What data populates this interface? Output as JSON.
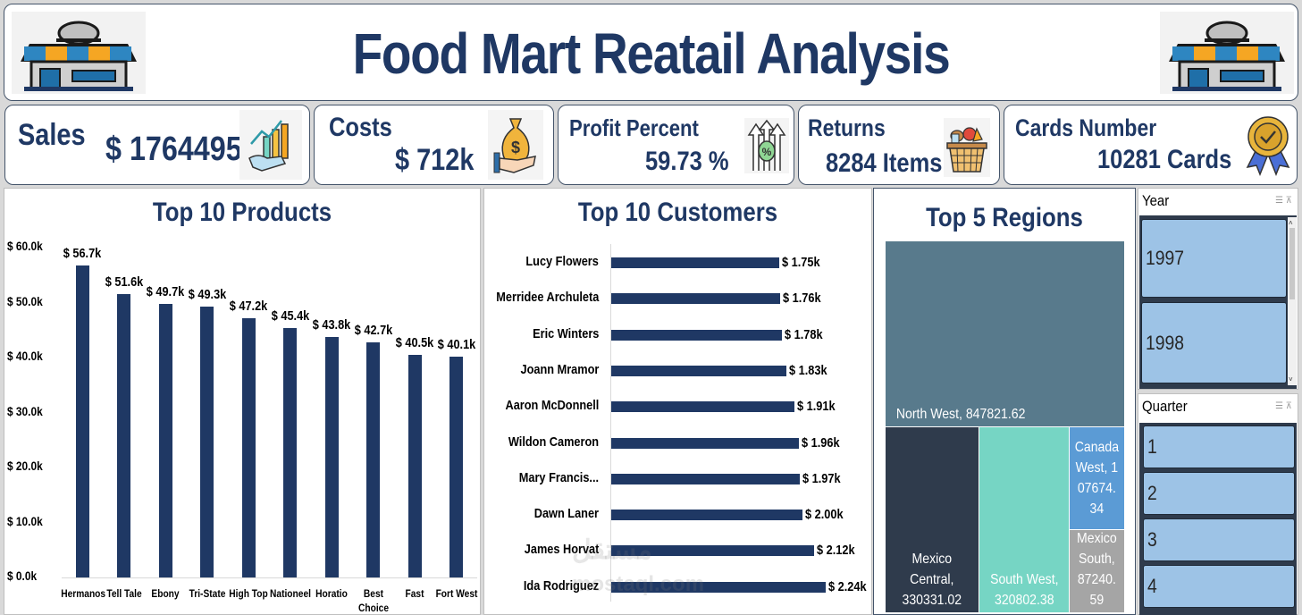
{
  "header": {
    "title": "Food Mart Reatail Analysis",
    "left_icon": "store-icon",
    "right_icon": "store-icon"
  },
  "kpis": [
    {
      "label": "Sales",
      "value": "$ 1764495",
      "icon": "sales-growth-icon"
    },
    {
      "label": "Costs",
      "value": "$ 712k",
      "icon": "money-bag-icon"
    },
    {
      "label": "Profit Percent",
      "value": "59.73 %",
      "icon": "percent-arrows-icon"
    },
    {
      "label": "Returns",
      "value": "8284 Items",
      "icon": "basket-icon"
    },
    {
      "label": "Cards Number",
      "value": "10281 Cards",
      "icon": "medal-icon"
    }
  ],
  "products_panel": {
    "title": "Top 10 Products"
  },
  "customers_panel": {
    "title": "Top 10 Customers"
  },
  "regions_panel": {
    "title": "Top 5 Regions"
  },
  "slicers": {
    "year": {
      "title": "Year",
      "items": [
        "1997",
        "1998"
      ]
    },
    "quarter": {
      "title": "Quarter",
      "items": [
        "1",
        "2",
        "3",
        "4"
      ]
    }
  },
  "watermark": {
    "line1": "مستقل",
    "line2": "mostaql.com"
  },
  "colors": {
    "bar": "#1f3864",
    "title": "#1f3864",
    "nw": "#587a8c",
    "mc": "#2f3b4c",
    "sw": "#76d5c4",
    "cw": "#5b9bd5",
    "ms": "#a5a5a5"
  },
  "chart_data": [
    {
      "type": "bar",
      "title": "Top 10 Products",
      "categories": [
        "Hermanos",
        "Tell Tale",
        "Ebony",
        "Tri-State",
        "High Top",
        "Nationeel",
        "Horatio",
        "Best Choice",
        "Fast",
        "Fort West"
      ],
      "values": [
        56.7,
        51.6,
        49.7,
        49.3,
        47.2,
        45.4,
        43.8,
        42.7,
        40.5,
        40.1
      ],
      "data_labels": [
        "$ 56.7k",
        "$ 51.6k",
        "$ 49.7k",
        "$ 49.3k",
        "$ 47.2k",
        "$ 45.4k",
        "$ 43.8k",
        "$ 42.7k",
        "$ 40.5k",
        "$ 40.1k"
      ],
      "yticks": [
        "$ 0.0k",
        "$ 10.0k",
        "$ 20.0k",
        "$ 30.0k",
        "$ 40.0k",
        "$ 50.0k",
        "$ 60.0k"
      ],
      "ylim": [
        0,
        60
      ],
      "xlabel": "",
      "ylabel": "",
      "grid": false
    },
    {
      "type": "bar",
      "orientation": "horizontal",
      "title": "Top 10 Customers",
      "categories": [
        "Lucy Flowers",
        "Merridee Archuleta",
        "Eric Winters",
        "Joann Mramor",
        "Aaron McDonnell",
        "Wildon Cameron",
        "Mary Francis...",
        "Dawn Laner",
        "James Horvat",
        "Ida Rodriguez"
      ],
      "values": [
        1.75,
        1.76,
        1.78,
        1.83,
        1.91,
        1.96,
        1.97,
        2.0,
        2.12,
        2.24
      ],
      "data_labels": [
        "$ 1.75k",
        "$ 1.76k",
        "$ 1.78k",
        "$ 1.83k",
        "$ 1.91k",
        "$ 1.96k",
        "$ 1.97k",
        "$ 2.00k",
        "$ 2.12k",
        "$ 2.24k"
      ],
      "xlim": [
        0,
        2.24
      ]
    },
    {
      "type": "treemap",
      "title": "Top 5 Regions",
      "items": [
        {
          "name": "North West",
          "value": 847821.62,
          "label": "North West, 847821.62"
        },
        {
          "name": "Mexico Central",
          "value": 330331.02,
          "label": "Mexico Central, 330331.02"
        },
        {
          "name": "South West",
          "value": 320802.38,
          "label": "South West, 320802.38"
        },
        {
          "name": "Canada West",
          "value": 107674.34,
          "label": "Canada West, 107674.34"
        },
        {
          "name": "Mexico South",
          "value": 87240.59,
          "label": "Mexico South, 87240.59"
        }
      ]
    }
  ]
}
